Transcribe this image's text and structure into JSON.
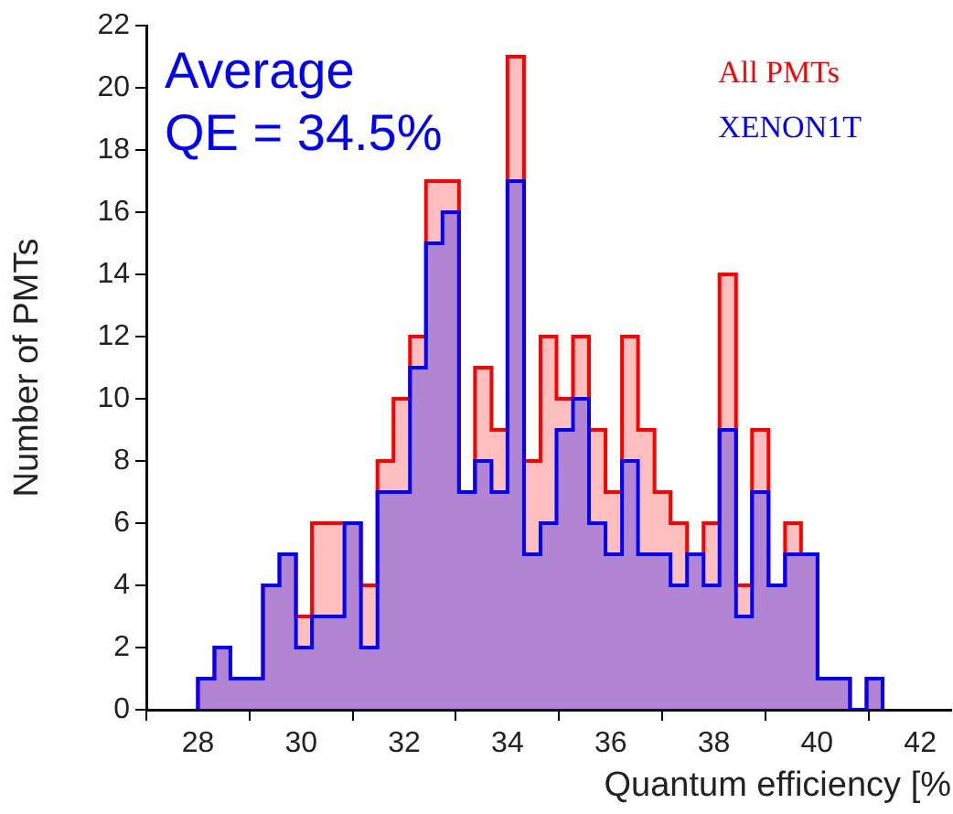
{
  "chart_data": {
    "type": "histogram",
    "xlabel": "Quantum efficiency [%",
    "ylabel": "Number of PMTs",
    "annotations": [
      "Average",
      "QE = 34.5%"
    ],
    "bins": [
      28,
      28.32,
      28.63,
      28.95,
      29.26,
      29.58,
      29.9,
      30.21,
      30.53,
      30.84,
      31.16,
      31.48,
      31.79,
      32.11,
      32.42,
      32.74,
      33.06,
      33.37,
      33.69,
      34,
      34.32,
      34.64,
      34.95,
      35.27,
      35.58,
      35.9,
      36.22,
      36.53,
      36.85,
      37.16,
      37.48,
      37.8,
      38.11,
      38.43,
      38.74,
      39.06,
      39.38,
      39.69,
      40.01,
      40.32,
      40.64,
      40.96,
      41.27
    ],
    "series": [
      {
        "name": "All PMTs",
        "color": "#ff0000",
        "values": [
          1,
          2,
          1,
          1,
          4,
          5,
          3,
          6,
          6,
          6,
          4,
          8,
          10,
          12,
          17,
          17,
          7,
          11,
          9,
          21,
          8,
          12,
          10,
          12,
          9,
          7,
          12,
          9,
          7,
          6,
          5,
          6,
          14,
          4,
          9,
          4,
          6,
          5,
          1,
          1,
          0,
          1
        ]
      },
      {
        "name": "XENON1T",
        "color": "#0000ff",
        "values": [
          1,
          2,
          1,
          1,
          4,
          5,
          2,
          3,
          3,
          6,
          2,
          7,
          7,
          11,
          15,
          16,
          7,
          8,
          7,
          17,
          5,
          6,
          9,
          10,
          6,
          5,
          8,
          5,
          5,
          4,
          5,
          4,
          9,
          3,
          7,
          4,
          5,
          5,
          1,
          1,
          0,
          1
        ]
      }
    ],
    "xlim": [
      27,
      42.6
    ],
    "xticks": [
      28,
      30,
      32,
      34,
      36,
      38,
      40,
      42
    ],
    "ylim": [
      0,
      22
    ],
    "yticks": [
      0,
      2,
      4,
      6,
      8,
      10,
      12,
      14,
      16,
      18,
      20,
      22
    ],
    "grid": false,
    "legend": "top right"
  }
}
